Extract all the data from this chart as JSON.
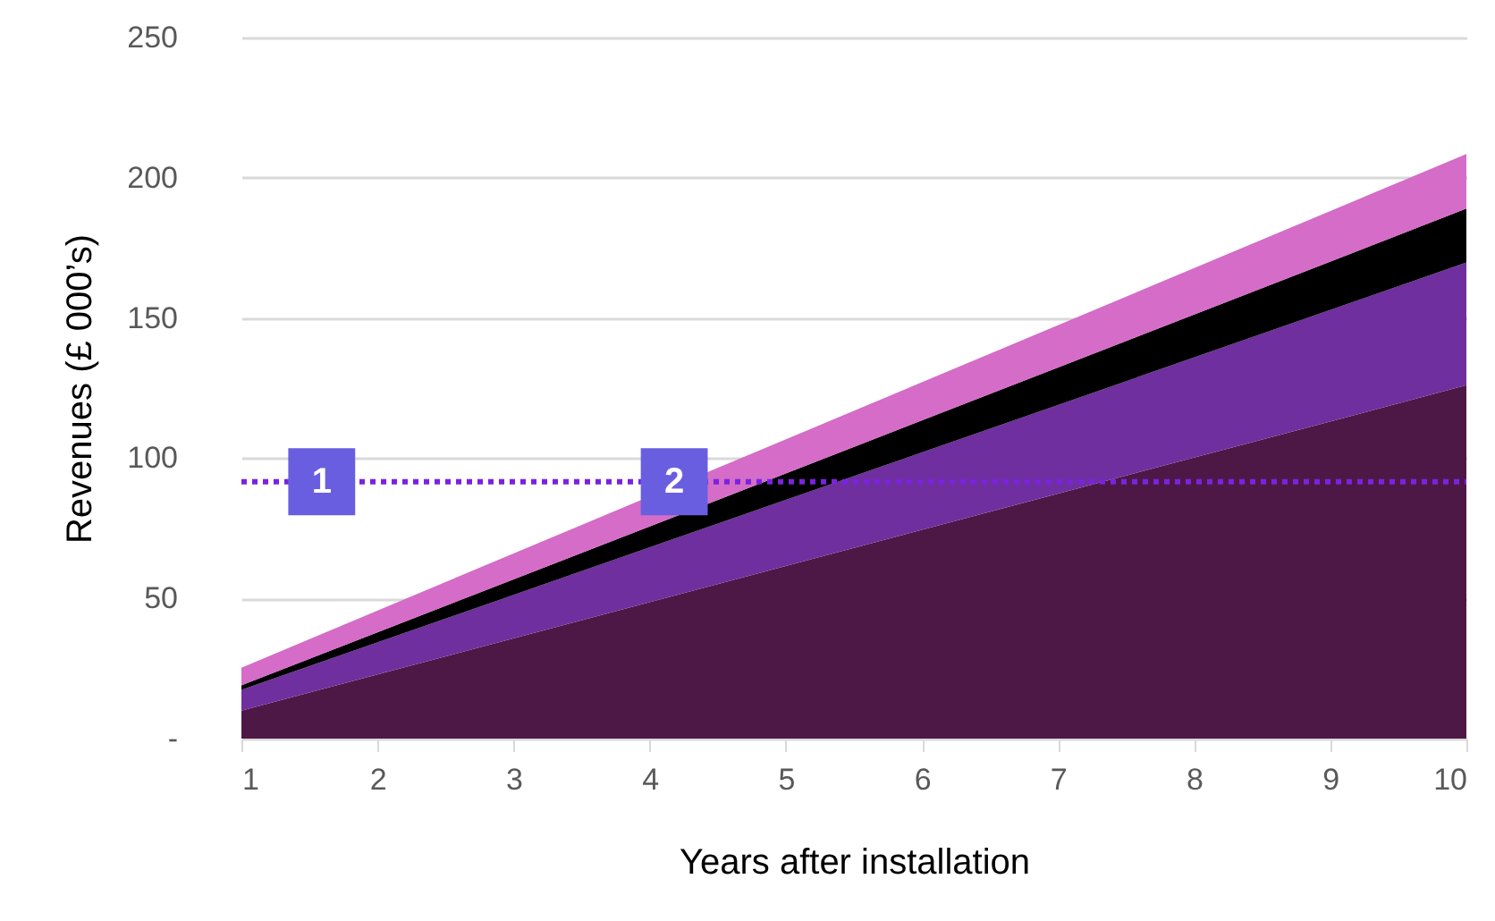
{
  "chart_data": {
    "type": "area",
    "stacked": true,
    "xlabel": "Years after installation",
    "ylabel": "Revenues (£ 000’s)",
    "x": [
      1,
      10
    ],
    "series": [
      {
        "color": "#4e1846",
        "values": [
          10,
          126
        ]
      },
      {
        "color": "#6f2f9e",
        "values": [
          7.4,
          43.8
        ]
      },
      {
        "color": "#000000",
        "values": [
          1.6,
          19.2
        ]
      },
      {
        "color": "#d56cc8",
        "values": [
          6.3,
          19.5
        ]
      }
    ],
    "xlim": [
      1,
      10
    ],
    "xticks": [
      1,
      2,
      3,
      4,
      5,
      6,
      7,
      8,
      9,
      10
    ],
    "ylim": [
      0,
      250
    ],
    "yticks": [
      {
        "value": 0,
        "label": "-"
      },
      50,
      100,
      150,
      200,
      250
    ],
    "grid": "y",
    "legend": false,
    "ref_lines": [
      {
        "axis": "y",
        "value": 91.6,
        "color": "#7b22e0",
        "line_style": "dotted"
      }
    ],
    "annotations": [
      {
        "text": "1",
        "x": 1.59,
        "y": 91.6
      },
      {
        "text": "2",
        "x": 4.18,
        "y": 91.6
      }
    ]
  }
}
